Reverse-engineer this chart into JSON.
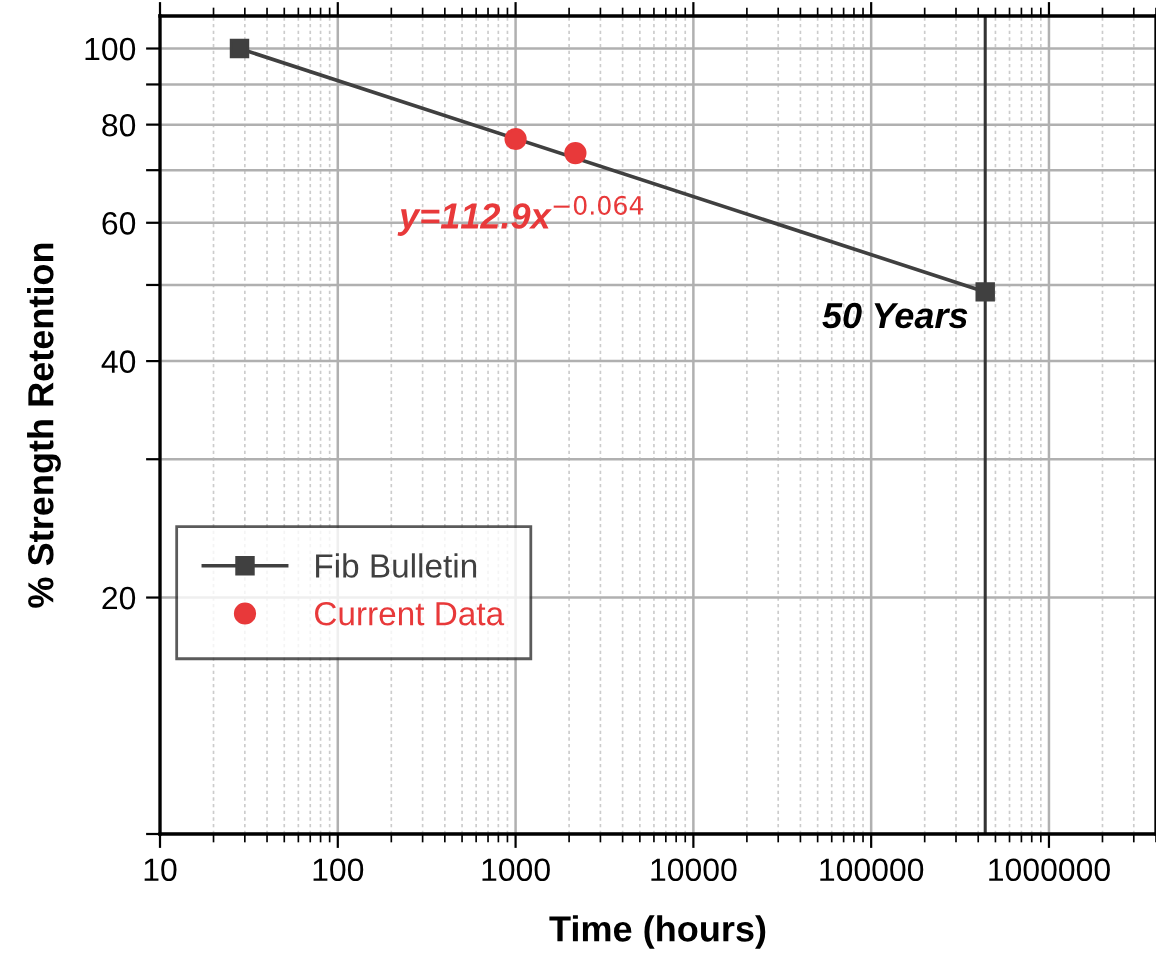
{
  "chart_data": {
    "type": "line",
    "xlabel": "Time (hours)",
    "ylabel": "% Strength Retention",
    "series": [
      {
        "name": "Fib Bulletin",
        "color": "#404040",
        "marker": "square",
        "x": [
          28,
          438000
        ],
        "values": [
          100,
          49
        ]
      },
      {
        "name": "Current Data",
        "type": "scatter",
        "color": "#e8393a",
        "marker": "circle",
        "x": [
          1000,
          2170
        ],
        "values": [
          76.7,
          73.6
        ]
      }
    ],
    "log": "xy",
    "xlim": [
      10,
      4000000
    ],
    "ylim": [
      10,
      110
    ],
    "xticks": [
      10,
      100,
      1000,
      10000,
      100000,
      1000000
    ],
    "yticks": [
      {
        "value": 10,
        "label": null
      },
      20,
      {
        "value": 30,
        "label": null
      },
      40,
      {
        "value": 50,
        "label": null
      },
      60,
      {
        "value": 70,
        "label": null
      },
      80,
      {
        "value": 90,
        "label": null
      },
      100
    ],
    "ref_lines": [
      {
        "axis": "x",
        "value": 438000,
        "label": "50 Years",
        "color": "#333333"
      }
    ],
    "annotations": [
      "y=112.9x$^{−0.064}$"
    ],
    "grid": true,
    "legend": "left"
  }
}
